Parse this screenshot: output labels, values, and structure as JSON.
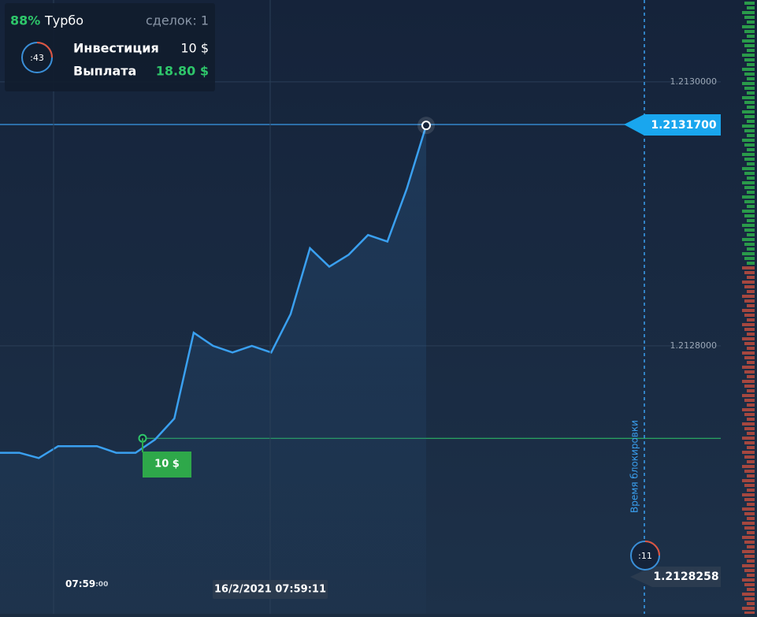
{
  "panel": {
    "percent": "88%",
    "mode": "Турбо",
    "deals": "сделок: 1",
    "timer": ":43",
    "invest_label": "Инвестиция",
    "invest_value": "10 $",
    "payout_label": "Выплата",
    "payout_value": "18.80 $"
  },
  "chart_data": {
    "type": "line",
    "categories": [
      null,
      null,
      null,
      null,
      null,
      null,
      null,
      null,
      null,
      null,
      null,
      null,
      null,
      null,
      null,
      null,
      null,
      null,
      null,
      null,
      null,
      null,
      null
    ],
    "series": [
      {
        "color": "#3aa0f0",
        "values": [
          1.212719,
          1.212719,
          1.212715,
          1.212724,
          1.212724,
          1.212724,
          1.212719,
          1.212719,
          1.212729,
          1.212745,
          1.21281,
          1.2128,
          1.212795,
          1.2128,
          1.212795,
          1.212824,
          1.212874,
          1.21286,
          1.212869,
          1.212884,
          1.212879,
          1.212919,
          1.212967
        ]
      }
    ],
    "ylim": [
      1.212597,
      1.213062
    ],
    "yticks": [
      {
        "value": 1.2128,
        "label": "1.2128000"
      },
      {
        "value": 1.213,
        "label": "1.2130000"
      }
    ],
    "strike": 1.21273,
    "grid": true,
    "current_price": "1.2131700",
    "bottom_price": "1.2128258",
    "bet_label": "10 $",
    "lock_label": "Время блокировки",
    "lock_timer": ":11",
    "time_main": "07:59",
    "time_sec": ":00",
    "time_cursor": "16/2/2021 07:59:11"
  }
}
